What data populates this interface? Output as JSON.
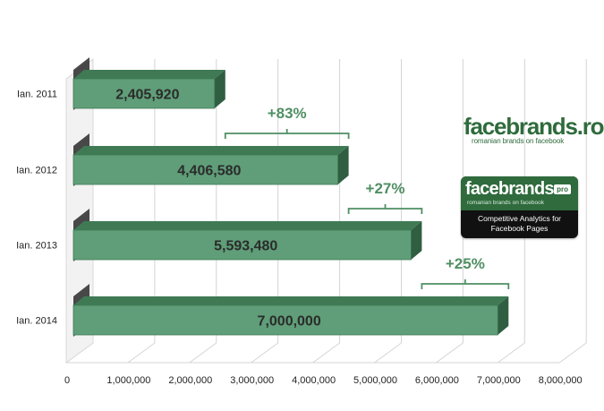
{
  "chart_data": {
    "type": "bar",
    "orientation": "horizontal",
    "categories": [
      "Ian. 2011",
      "Ian. 2012",
      "Ian. 2013",
      "Ian. 2014"
    ],
    "values": [
      2405920,
      4406580,
      5593480,
      7000000
    ],
    "value_labels": [
      "2,405,920",
      "4,406,580",
      "5,593,480",
      "7,000,000"
    ],
    "growth_annotations": [
      {
        "from": 2405920,
        "to": 4406580,
        "label": "+83%"
      },
      {
        "from": 4406580,
        "to": 5593480,
        "label": "+27%"
      },
      {
        "from": 5593480,
        "to": 7000000,
        "label": "+25%"
      }
    ],
    "xlim": [
      0,
      8000000
    ],
    "x_ticks": [
      0,
      1000000,
      2000000,
      3000000,
      4000000,
      5000000,
      6000000,
      7000000,
      8000000
    ],
    "x_tick_labels": [
      "0",
      "1,000,000",
      "2,000,000",
      "3,000,000",
      "4,000,000",
      "5,000,000",
      "6,000,000",
      "7,000,000",
      "8,000,000"
    ],
    "grid": "vertical",
    "three_d": true,
    "colors": {
      "bar_face": "#5f9e78",
      "bar_top": "#3f7a55",
      "bar_side": "#2f5e41",
      "annotation": "#4f8f63",
      "value_text": "#2b2b2b",
      "grid": "#d4d4d4"
    }
  },
  "logos": {
    "facebrands": {
      "brand": "facebrands.ro",
      "tagline": "romanian brands on facebook"
    },
    "facebrands_pro": {
      "brand": "facebrands",
      "badge": "pro",
      "tagline": "romanian brands on facebook",
      "description": "Competitive Analytics for Facebook Pages"
    }
  }
}
